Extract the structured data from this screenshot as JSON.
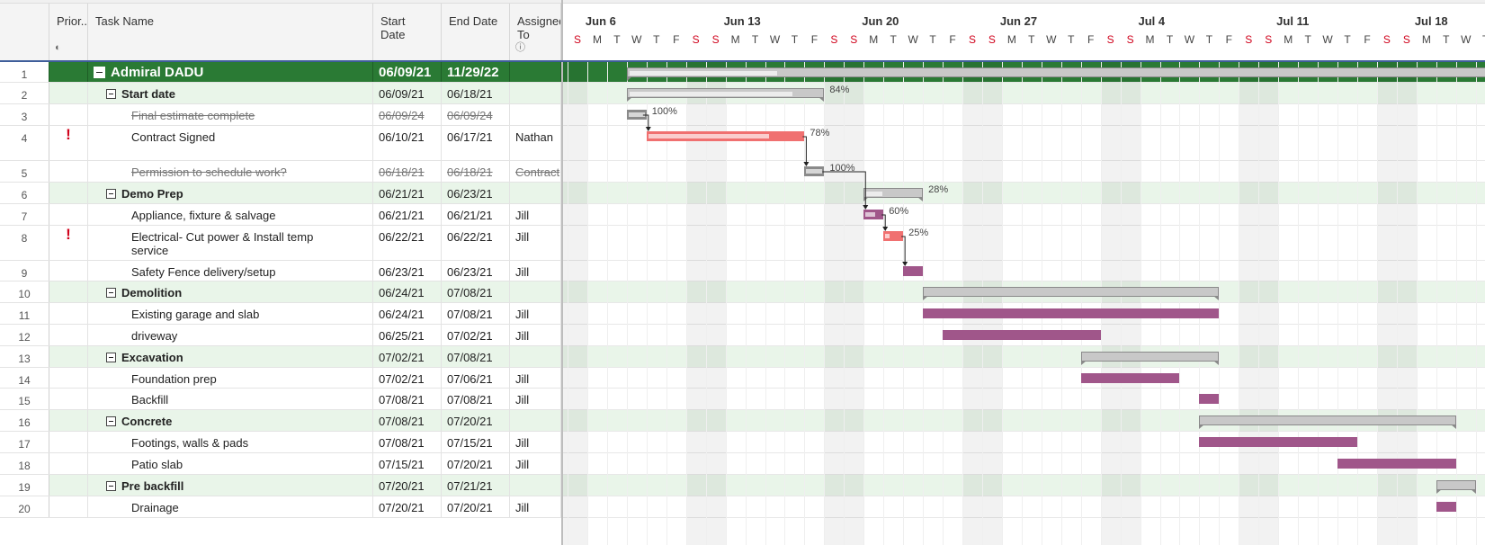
{
  "columns": {
    "priority": "Prior...",
    "task_name": "Task Name",
    "start_date": "Start Date",
    "end_date": "End Date",
    "assigned_to": "Assigned To"
  },
  "timeline": {
    "weeks": [
      "Jun 6",
      "Jun 13",
      "Jun 20",
      "Jun 27",
      "Jul 4",
      "Jul 11",
      "Jul 18"
    ],
    "day_letters": [
      "S",
      "M",
      "T",
      "W",
      "T",
      "F",
      "S"
    ]
  },
  "rows": [
    {
      "num": "1",
      "name": "Admiral DADU",
      "start": "06/09/21",
      "end": "11/29/22",
      "assignee": "",
      "priority": "",
      "type": "root"
    },
    {
      "num": "2",
      "name": "Start date",
      "start": "06/09/21",
      "end": "06/18/21",
      "assignee": "",
      "priority": "",
      "type": "summary",
      "pct": "84%"
    },
    {
      "num": "3",
      "name": "Final estimate complete",
      "start": "06/09/24",
      "end": "06/09/24",
      "assignee": "",
      "priority": "",
      "type": "done",
      "pct": "100%"
    },
    {
      "num": "4",
      "name": "Contract Signed",
      "start": "06/10/21",
      "end": "06/17/21",
      "assignee": "Nathan",
      "priority": "!",
      "type": "task",
      "pct": "78%"
    },
    {
      "num": "5",
      "name": "Permission to schedule work?",
      "start": "06/18/21",
      "end": "06/18/21",
      "assignee": "Contract",
      "priority": "",
      "type": "done",
      "pct": "100%"
    },
    {
      "num": "6",
      "name": "Demo Prep",
      "start": "06/21/21",
      "end": "06/23/21",
      "assignee": "",
      "priority": "",
      "type": "summary",
      "pct": "28%"
    },
    {
      "num": "7",
      "name": "Appliance, fixture & salvage",
      "start": "06/21/21",
      "end": "06/21/21",
      "assignee": "Jill",
      "priority": "",
      "type": "task",
      "pct": "60%"
    },
    {
      "num": "8",
      "name": "Electrical- Cut power & Install temp service",
      "start": "06/22/21",
      "end": "06/22/21",
      "assignee": "Jill",
      "priority": "!",
      "type": "task",
      "pct": "25%"
    },
    {
      "num": "9",
      "name": "Safety Fence delivery/setup",
      "start": "06/23/21",
      "end": "06/23/21",
      "assignee": "Jill",
      "priority": "",
      "type": "task"
    },
    {
      "num": "10",
      "name": "Demolition",
      "start": "06/24/21",
      "end": "07/08/21",
      "assignee": "",
      "priority": "",
      "type": "summary"
    },
    {
      "num": "11",
      "name": "Existing garage and slab",
      "start": "06/24/21",
      "end": "07/08/21",
      "assignee": "Jill",
      "priority": "",
      "type": "task"
    },
    {
      "num": "12",
      "name": "driveway",
      "start": "06/25/21",
      "end": "07/02/21",
      "assignee": "Jill",
      "priority": "",
      "type": "task"
    },
    {
      "num": "13",
      "name": "Excavation",
      "start": "07/02/21",
      "end": "07/08/21",
      "assignee": "",
      "priority": "",
      "type": "summary"
    },
    {
      "num": "14",
      "name": "Foundation prep",
      "start": "07/02/21",
      "end": "07/06/21",
      "assignee": "Jill",
      "priority": "",
      "type": "task"
    },
    {
      "num": "15",
      "name": "Backfill",
      "start": "07/08/21",
      "end": "07/08/21",
      "assignee": "Jill",
      "priority": "",
      "type": "task"
    },
    {
      "num": "16",
      "name": "Concrete",
      "start": "07/08/21",
      "end": "07/20/21",
      "assignee": "",
      "priority": "",
      "type": "summary"
    },
    {
      "num": "17",
      "name": "Footings, walls & pads",
      "start": "07/08/21",
      "end": "07/15/21",
      "assignee": "Jill",
      "priority": "",
      "type": "task"
    },
    {
      "num": "18",
      "name": "Patio slab",
      "start": "07/15/21",
      "end": "07/20/21",
      "assignee": "Jill",
      "priority": "",
      "type": "task"
    },
    {
      "num": "19",
      "name": "Pre backfill",
      "start": "07/20/21",
      "end": "07/21/21",
      "assignee": "",
      "priority": "",
      "type": "summary"
    },
    {
      "num": "20",
      "name": "Drainage",
      "start": "07/20/21",
      "end": "07/20/21",
      "assignee": "Jill",
      "priority": "",
      "type": "task"
    }
  ],
  "colors": {
    "root_green": "#2a7a34",
    "summary_tint": "#e9f5e9",
    "task_purple": "#a0568a",
    "critical_red": "#f07070",
    "weekend_red": "#d0021b"
  }
}
